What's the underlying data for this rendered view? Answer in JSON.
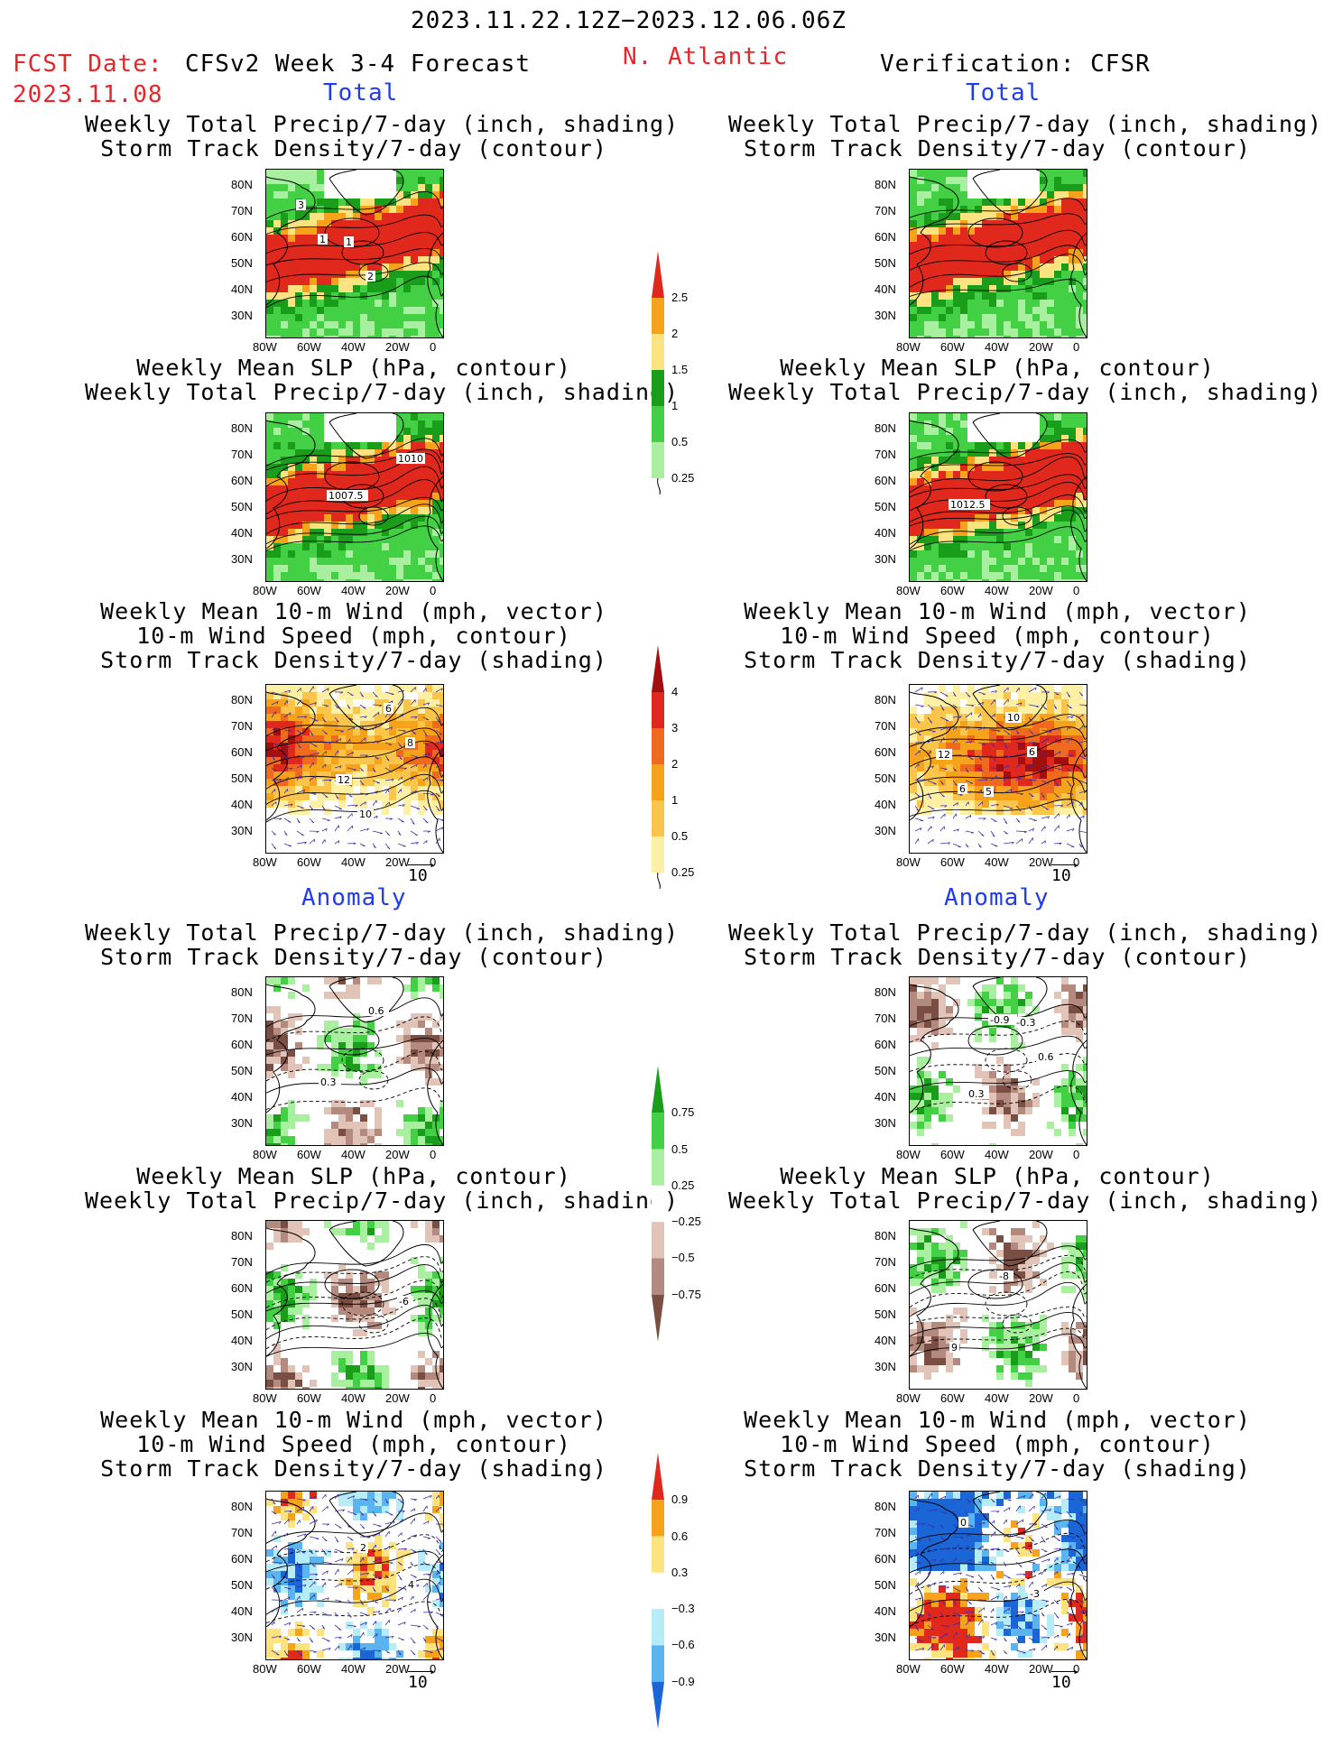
{
  "header": {
    "period": "2023.11.22.12Z−2023.12.06.06Z",
    "fcst_label": "FCST Date:",
    "fcst_date": "2023.11.08",
    "model": "CFSv2 Week 3-4 Forecast",
    "region": "N. Atlantic",
    "verification": "Verification: CFSR"
  },
  "sections": {
    "total": "Total",
    "anomaly": "Anomaly"
  },
  "panel_titles": {
    "precip_track": [
      "Weekly Total Precip/7-day (inch, shading)",
      "Storm Track Density/7-day (contour)"
    ],
    "slp_precip": [
      "Weekly Mean SLP (hPa, contour)",
      "Weekly Total Precip/7-day (inch, shading)"
    ],
    "wind_track": [
      "Weekly Mean 10-m Wind (mph, vector)",
      "10-m Wind Speed (mph, contour)",
      "Storm Track Density/7-day (shading)"
    ]
  },
  "axes": {
    "lat_ticks": [
      "80N",
      "70N",
      "60N",
      "50N",
      "40N",
      "30N"
    ],
    "lon_ticks": [
      "80W",
      "60W",
      "40W",
      "20W",
      "0"
    ],
    "vector_ref": "10"
  },
  "contour_labels": {
    "fc_total_track": [
      "1",
      "2",
      "3",
      "1"
    ],
    "fc_total_slp": [
      "1010",
      "1007.5"
    ],
    "fc_total_wind": [
      "10",
      "8",
      "12",
      "6"
    ],
    "vf_total_slp": [
      "1012.5"
    ],
    "vf_total_wind": [
      "6",
      "6",
      "10",
      "12",
      "5"
    ],
    "fc_anom_track": [
      "0.3",
      "0.6"
    ],
    "fc_anom_slp": [
      "-6"
    ],
    "fc_anom_wind": [
      "2",
      "4"
    ],
    "vf_anom_track": [
      "-0.9",
      "0.6",
      "0.3",
      "-0.3"
    ],
    "vf_anom_slp": [
      "9",
      "-8"
    ],
    "vf_anom_wind": [
      "-3",
      "0"
    ]
  },
  "colorbars": {
    "precip": {
      "labels": [
        "2.5",
        "2",
        "1.5",
        "1",
        "0.5",
        "0.25"
      ],
      "colors": [
        "#e0291c",
        "#f7a21b",
        "#fde37f",
        "#1a9d1a",
        "#44d044",
        "#a8f0a0"
      ]
    },
    "track": {
      "labels": [
        "4",
        "3",
        "2",
        "1",
        "0.5",
        "0.25"
      ],
      "colors": [
        "#a30e0e",
        "#e0291c",
        "#f06a1e",
        "#f7a21b",
        "#fbc44a",
        "#fdf0a4"
      ]
    },
    "precip_anom": {
      "labels": [
        "0.75",
        "0.5",
        "0.25",
        "−0.25",
        "−0.5",
        "−0.75"
      ],
      "colors": [
        "#1a9d1a",
        "#44d044",
        "#a8f0a0",
        "#ffffff",
        "#e2c3b8",
        "#b48a7e",
        "#7a4e42"
      ]
    },
    "track_anom": {
      "labels": [
        "0.9",
        "0.6",
        "0.3",
        "−0.3",
        "−0.6",
        "−0.9"
      ],
      "colors": [
        "#e0291c",
        "#f7a21b",
        "#fde37f",
        "#ffffff",
        "#b6ecf8",
        "#5ab4f0",
        "#1a66d6"
      ]
    }
  },
  "chart_data": {
    "type": "heatmap",
    "title": "2023.11.22.12Z−2023.12.06.06Z",
    "region": "N. Atlantic",
    "lat_range": [
      "30N",
      "80N"
    ],
    "lon_range": [
      "80W",
      "0"
    ],
    "panels": [
      {
        "column": "CFSv2 Week 3-4 Forecast",
        "section": "Total",
        "fields": "precip_track"
      },
      {
        "column": "CFSv2 Week 3-4 Forecast",
        "section": "Total",
        "fields": "slp_precip"
      },
      {
        "column": "CFSv2 Week 3-4 Forecast",
        "section": "Total",
        "fields": "wind_track"
      },
      {
        "column": "CFSv2 Week 3-4 Forecast",
        "section": "Anomaly",
        "fields": "precip_track"
      },
      {
        "column": "CFSv2 Week 3-4 Forecast",
        "section": "Anomaly",
        "fields": "slp_precip"
      },
      {
        "column": "CFSv2 Week 3-4 Forecast",
        "section": "Anomaly",
        "fields": "wind_track"
      },
      {
        "column": "Verification: CFSR",
        "section": "Total",
        "fields": "precip_track"
      },
      {
        "column": "Verification: CFSR",
        "section": "Total",
        "fields": "slp_precip"
      },
      {
        "column": "Verification: CFSR",
        "section": "Total",
        "fields": "wind_track"
      },
      {
        "column": "Verification: CFSR",
        "section": "Anomaly",
        "fields": "precip_track"
      },
      {
        "column": "Verification: CFSR",
        "section": "Anomaly",
        "fields": "slp_precip"
      },
      {
        "column": "Verification: CFSR",
        "section": "Anomaly",
        "fields": "wind_track"
      }
    ]
  }
}
